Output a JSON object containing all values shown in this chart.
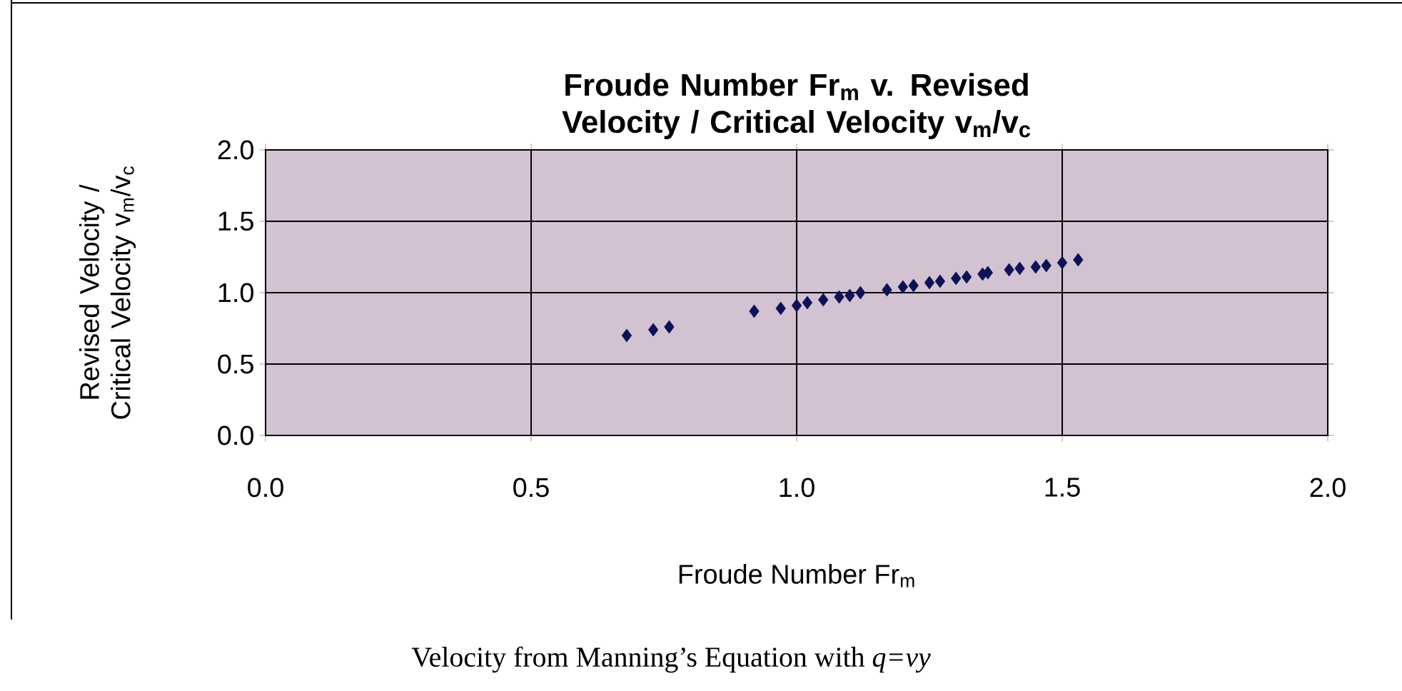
{
  "chart_data": {
    "type": "scatter",
    "title": "Froude Number Fr$_{m}$ v. Revised Velocity / Critical Velocity  v$_{m}$/v$_{c}$",
    "xlabel": "Froude Number Fr$_{m}$",
    "ylabel": "Revised Velocity / Critical Velocity  v$_{m}$/v$_{c}$",
    "annotations": [
      "Velocity from Manning’s Equation with *q=vy*"
    ],
    "x": [
      0.68,
      0.73,
      0.76,
      0.92,
      0.97,
      1.0,
      1.02,
      1.05,
      1.08,
      1.1,
      1.12,
      1.17,
      1.2,
      1.22,
      1.25,
      1.27,
      1.3,
      1.32,
      1.35,
      1.36,
      1.4,
      1.42,
      1.45,
      1.47,
      1.5,
      1.53
    ],
    "series": [
      {
        "color": "#0c1158",
        "values": [
          0.7,
          0.74,
          0.76,
          0.87,
          0.89,
          0.91,
          0.93,
          0.95,
          0.97,
          0.98,
          1.0,
          1.02,
          1.04,
          1.05,
          1.07,
          1.08,
          1.1,
          1.11,
          1.13,
          1.14,
          1.16,
          1.17,
          1.18,
          1.19,
          1.21,
          1.23
        ]
      }
    ],
    "xlim": [
      0,
      2
    ],
    "ylim": [
      0,
      2
    ],
    "xticks": [
      {
        "value": 0,
        "label": "0.0"
      },
      {
        "value": 0.5,
        "label": "0.5"
      },
      {
        "value": 1,
        "label": "1.0"
      },
      {
        "value": 1.5,
        "label": "1.5"
      },
      {
        "value": 2,
        "label": "2.0"
      }
    ],
    "yticks": [
      {
        "value": 0,
        "label": "0.0"
      },
      {
        "value": 0.5,
        "label": "0.5"
      },
      {
        "value": 1,
        "label": "1.0"
      },
      {
        "value": 1.5,
        "label": "1.5"
      },
      {
        "value": 2,
        "label": "2.0"
      }
    ],
    "grid": true,
    "marker": "diamond"
  }
}
